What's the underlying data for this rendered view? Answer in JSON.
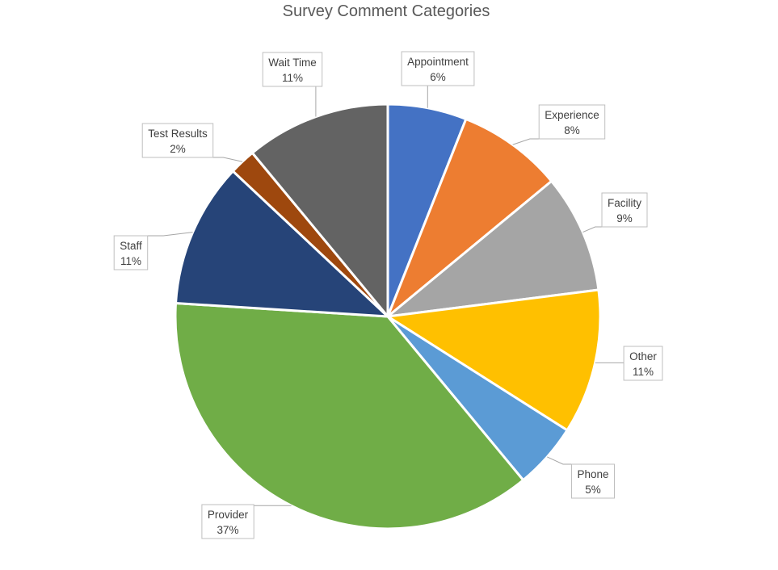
{
  "chart_data": {
    "type": "pie",
    "title": "Survey Comment Categories",
    "legend": "none",
    "start_angle_deg": 0,
    "direction": "clockwise",
    "slices": [
      {
        "label": "Appointment",
        "value": 6,
        "pct_label": "6%",
        "color": "#4472C4"
      },
      {
        "label": "Experience",
        "value": 8,
        "pct_label": "8%",
        "color": "#ED7D31"
      },
      {
        "label": "Facility",
        "value": 9,
        "pct_label": "9%",
        "color": "#A5A5A5"
      },
      {
        "label": "Other",
        "value": 11,
        "pct_label": "11%",
        "color": "#FFC000"
      },
      {
        "label": "Phone",
        "value": 5,
        "pct_label": "5%",
        "color": "#5B9BD5"
      },
      {
        "label": "Provider",
        "value": 37,
        "pct_label": "37%",
        "color": "#70AD47"
      },
      {
        "label": "Staff",
        "value": 11,
        "pct_label": "11%",
        "color": "#264478"
      },
      {
        "label": "Test Results",
        "value": 2,
        "pct_label": "2%",
        "color": "#9E480E"
      },
      {
        "label": "Wait Time",
        "value": 11,
        "pct_label": "11%",
        "color": "#636363"
      }
    ]
  }
}
